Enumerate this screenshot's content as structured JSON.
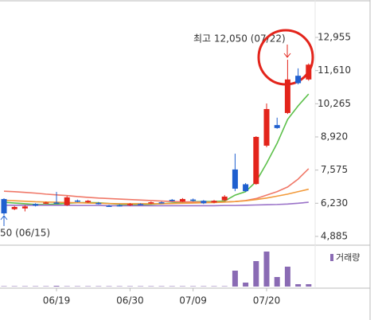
{
  "chart_data": {
    "type": "candlestick",
    "categories": [
      null,
      null,
      null,
      null,
      null,
      "06/19",
      null,
      null,
      null,
      null,
      null,
      null,
      "06/30",
      null,
      null,
      null,
      null,
      null,
      "07/09",
      null,
      null,
      null,
      null,
      null,
      null,
      "07/20",
      null,
      null,
      null,
      null
    ],
    "open": [
      6400,
      5990,
      6020,
      6200,
      6230,
      6260,
      6150,
      6340,
      6270,
      6240,
      6130,
      6150,
      6150,
      6200,
      6230,
      6270,
      6370,
      6300,
      6380,
      6330,
      6260,
      6350,
      7600,
      7000,
      7010,
      8565,
      9400,
      9890,
      11400,
      11250
    ],
    "high": [
      6430,
      6120,
      6150,
      6230,
      6300,
      6690,
      6520,
      6380,
      6360,
      6280,
      6170,
      6190,
      6240,
      6230,
      6300,
      6300,
      6400,
      6440,
      6420,
      6360,
      6360,
      6560,
      8240,
      7050,
      8950,
      10276,
      9700,
      12050,
      11700,
      11900
    ],
    "low": [
      5757,
      5950,
      5900,
      6100,
      6200,
      6210,
      6120,
      6270,
      6240,
      6180,
      6080,
      6100,
      6120,
      6150,
      6200,
      6230,
      6300,
      6280,
      6300,
      6200,
      6230,
      6320,
      6720,
      6690,
      6980,
      8500,
      9250,
      9850,
      11050,
      11200
    ],
    "close": [
      5820,
      6080,
      6100,
      6130,
      6260,
      6250,
      6470,
      6300,
      6330,
      6200,
      6100,
      6120,
      6200,
      6180,
      6270,
      6250,
      6320,
      6400,
      6330,
      6230,
      6330,
      6500,
      6820,
      6720,
      8920,
      10050,
      9280,
      11250,
      11100,
      11850
    ],
    "up_color": "#e3241b",
    "down_color": "#1f5fcf",
    "lines": [
      {
        "color": "#5cc04a",
        "values": [
          6270,
          6240,
          6210,
          6180,
          6180,
          6200,
          6230,
          6250,
          6260,
          6250,
          6220,
          6190,
          6170,
          6170,
          6190,
          6210,
          6240,
          6270,
          6290,
          6300,
          6300,
          6320,
          6560,
          6700,
          7110,
          7850,
          8660,
          9630,
          10180,
          10660
        ]
      },
      {
        "color": "#f07868",
        "values": [
          6720,
          6700,
          6670,
          6640,
          6600,
          6570,
          6540,
          6500,
          6470,
          6440,
          6420,
          6400,
          6380,
          6360,
          6340,
          6320,
          6300,
          6290,
          6280,
          6270,
          6270,
          6280,
          6300,
          6340,
          6420,
          6560,
          6700,
          6890,
          7210,
          7630
        ]
      },
      {
        "color": "#f29a3a",
        "values": [
          6350,
          6330,
          6310,
          6290,
          6280,
          6270,
          6260,
          6250,
          6240,
          6230,
          6220,
          6210,
          6210,
          6210,
          6210,
          6210,
          6220,
          6230,
          6240,
          6250,
          6260,
          6280,
          6300,
          6330,
          6380,
          6440,
          6520,
          6600,
          6700,
          6800
        ]
      },
      {
        "color": "#9a72c8",
        "values": [
          6150,
          6150,
          6150,
          6150,
          6150,
          6150,
          6150,
          6140,
          6140,
          6140,
          6130,
          6130,
          6130,
          6130,
          6130,
          6130,
          6130,
          6130,
          6130,
          6130,
          6130,
          6140,
          6140,
          6150,
          6160,
          6170,
          6180,
          6200,
          6230,
          6270
        ]
      }
    ],
    "ylim": [
      4530,
      14472
    ],
    "yticks": [
      {
        "value": 12955,
        "label": "12,955"
      },
      {
        "value": 11610,
        "label": "11,610"
      },
      {
        "value": 10265,
        "label": "10,265"
      },
      {
        "value": 8920,
        "label": "8,920"
      },
      {
        "value": 7575,
        "label": "7,575"
      },
      {
        "value": 6230,
        "label": "6,230"
      },
      {
        "value": 4885,
        "label": "4,885"
      }
    ],
    "volume": {
      "name": "거래량",
      "color": "#8a6bb4",
      "ylim": [
        0,
        100
      ],
      "values": [
        1,
        1,
        1,
        1,
        1,
        2,
        1,
        1,
        1,
        1,
        1,
        1,
        1,
        1,
        1,
        1,
        1,
        1,
        1,
        1,
        1,
        1,
        40,
        10,
        64,
        88,
        24,
        50,
        6,
        6
      ]
    },
    "annotations": [
      {
        "text": "최고 12,050 (07/22)",
        "color": "#e3241b"
      },
      {
        "text": "50 (06/15)",
        "color": "#1f5fcf"
      }
    ]
  }
}
